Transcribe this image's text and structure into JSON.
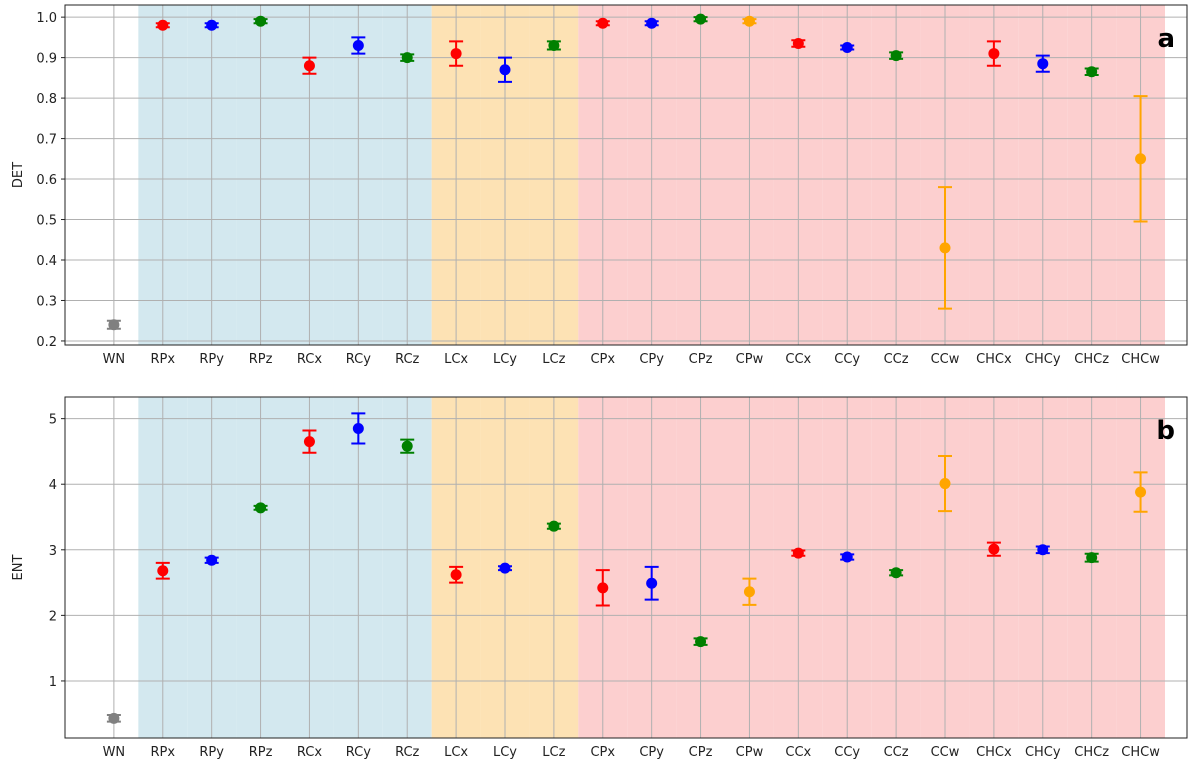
{
  "chart_data": [
    {
      "type": "errorbar",
      "ylabel": "DET",
      "annotation": "a",
      "grid": true,
      "categories": [
        "WN",
        "RPx",
        "RPy",
        "RPz",
        "RCx",
        "RCy",
        "RCz",
        "LCx",
        "LCy",
        "LCz",
        "CPx",
        "CPy",
        "CPz",
        "CPw",
        "CCx",
        "CCy",
        "CCz",
        "CCw",
        "CHCx",
        "CHCy",
        "CHCz",
        "CHCw"
      ],
      "values": [
        0.24,
        0.98,
        0.98,
        0.99,
        0.88,
        0.93,
        0.9,
        0.91,
        0.87,
        0.93,
        0.985,
        0.985,
        0.995,
        0.99,
        0.935,
        0.925,
        0.905,
        0.43,
        0.91,
        0.885,
        0.865,
        0.65
      ],
      "errors": [
        0.01,
        0.005,
        0.005,
        0.005,
        0.02,
        0.02,
        0.008,
        0.03,
        0.03,
        0.01,
        0.005,
        0.005,
        0.005,
        0.005,
        0.008,
        0.005,
        0.008,
        0.15,
        0.03,
        0.02,
        0.008,
        0.155
      ],
      "colors": [
        "#808080",
        "#ff0000",
        "#0000ff",
        "#008000",
        "#ff0000",
        "#0000ff",
        "#008000",
        "#ff0000",
        "#0000ff",
        "#008000",
        "#ff0000",
        "#0000ff",
        "#008000",
        "#ffa500",
        "#ff0000",
        "#0000ff",
        "#008000",
        "#ffa500",
        "#ff0000",
        "#0000ff",
        "#008000",
        "#ffa500"
      ],
      "background_colors": [
        null,
        "#d3e8ef",
        "#d3e8ef",
        "#d3e8ef",
        "#d3e8ef",
        "#d3e8ef",
        "#d3e8ef",
        "#fde2b4",
        "#fde2b4",
        "#fde2b4",
        "#fccfcf",
        "#fccfcf",
        "#fccfcf",
        "#fccfcf",
        "#fccfcf",
        "#fccfcf",
        "#fccfcf",
        "#fccfcf",
        "#fccfcf",
        "#fccfcf",
        "#fccfcf",
        "#fccfcf"
      ],
      "ylim": [
        0.19,
        1.03
      ],
      "yticks": [
        0.2,
        0.3,
        0.4,
        0.5,
        0.6,
        0.7,
        0.8,
        0.9,
        {
          "value": 1,
          "label": "1.0"
        }
      ]
    },
    {
      "type": "errorbar",
      "ylabel": "ENT",
      "annotation": "b",
      "grid": true,
      "categories": [
        "WN",
        "RPx",
        "RPy",
        "RPz",
        "RCx",
        "RCy",
        "RCz",
        "LCx",
        "LCy",
        "LCz",
        "CPx",
        "CPy",
        "CPz",
        "CPw",
        "CCx",
        "CCy",
        "CCz",
        "CCw",
        "CHCx",
        "CHCy",
        "CHCz",
        "CHCw"
      ],
      "values": [
        0.43,
        2.68,
        2.84,
        3.64,
        4.65,
        4.85,
        4.58,
        2.62,
        2.72,
        3.36,
        2.42,
        2.49,
        1.6,
        2.36,
        2.95,
        2.89,
        2.65,
        4.01,
        3.01,
        3.0,
        2.88,
        3.88
      ],
      "errors": [
        0.05,
        0.12,
        0.04,
        0.03,
        0.17,
        0.23,
        0.1,
        0.12,
        0.03,
        0.04,
        0.27,
        0.25,
        0.05,
        0.2,
        0.04,
        0.04,
        0.04,
        0.42,
        0.1,
        0.05,
        0.06,
        0.3
      ],
      "colors": [
        "#808080",
        "#ff0000",
        "#0000ff",
        "#008000",
        "#ff0000",
        "#0000ff",
        "#008000",
        "#ff0000",
        "#0000ff",
        "#008000",
        "#ff0000",
        "#0000ff",
        "#008000",
        "#ffa500",
        "#ff0000",
        "#0000ff",
        "#008000",
        "#ffa500",
        "#ff0000",
        "#0000ff",
        "#008000",
        "#ffa500"
      ],
      "background_colors": [
        null,
        "#d3e8ef",
        "#d3e8ef",
        "#d3e8ef",
        "#d3e8ef",
        "#d3e8ef",
        "#d3e8ef",
        "#fde2b4",
        "#fde2b4",
        "#fde2b4",
        "#fccfcf",
        "#fccfcf",
        "#fccfcf",
        "#fccfcf",
        "#fccfcf",
        "#fccfcf",
        "#fccfcf",
        "#fccfcf",
        "#fccfcf",
        "#fccfcf",
        "#fccfcf",
        "#fccfcf"
      ],
      "ylim": [
        0.13,
        5.33
      ],
      "yticks": [
        1,
        2,
        3,
        4,
        5
      ]
    }
  ]
}
